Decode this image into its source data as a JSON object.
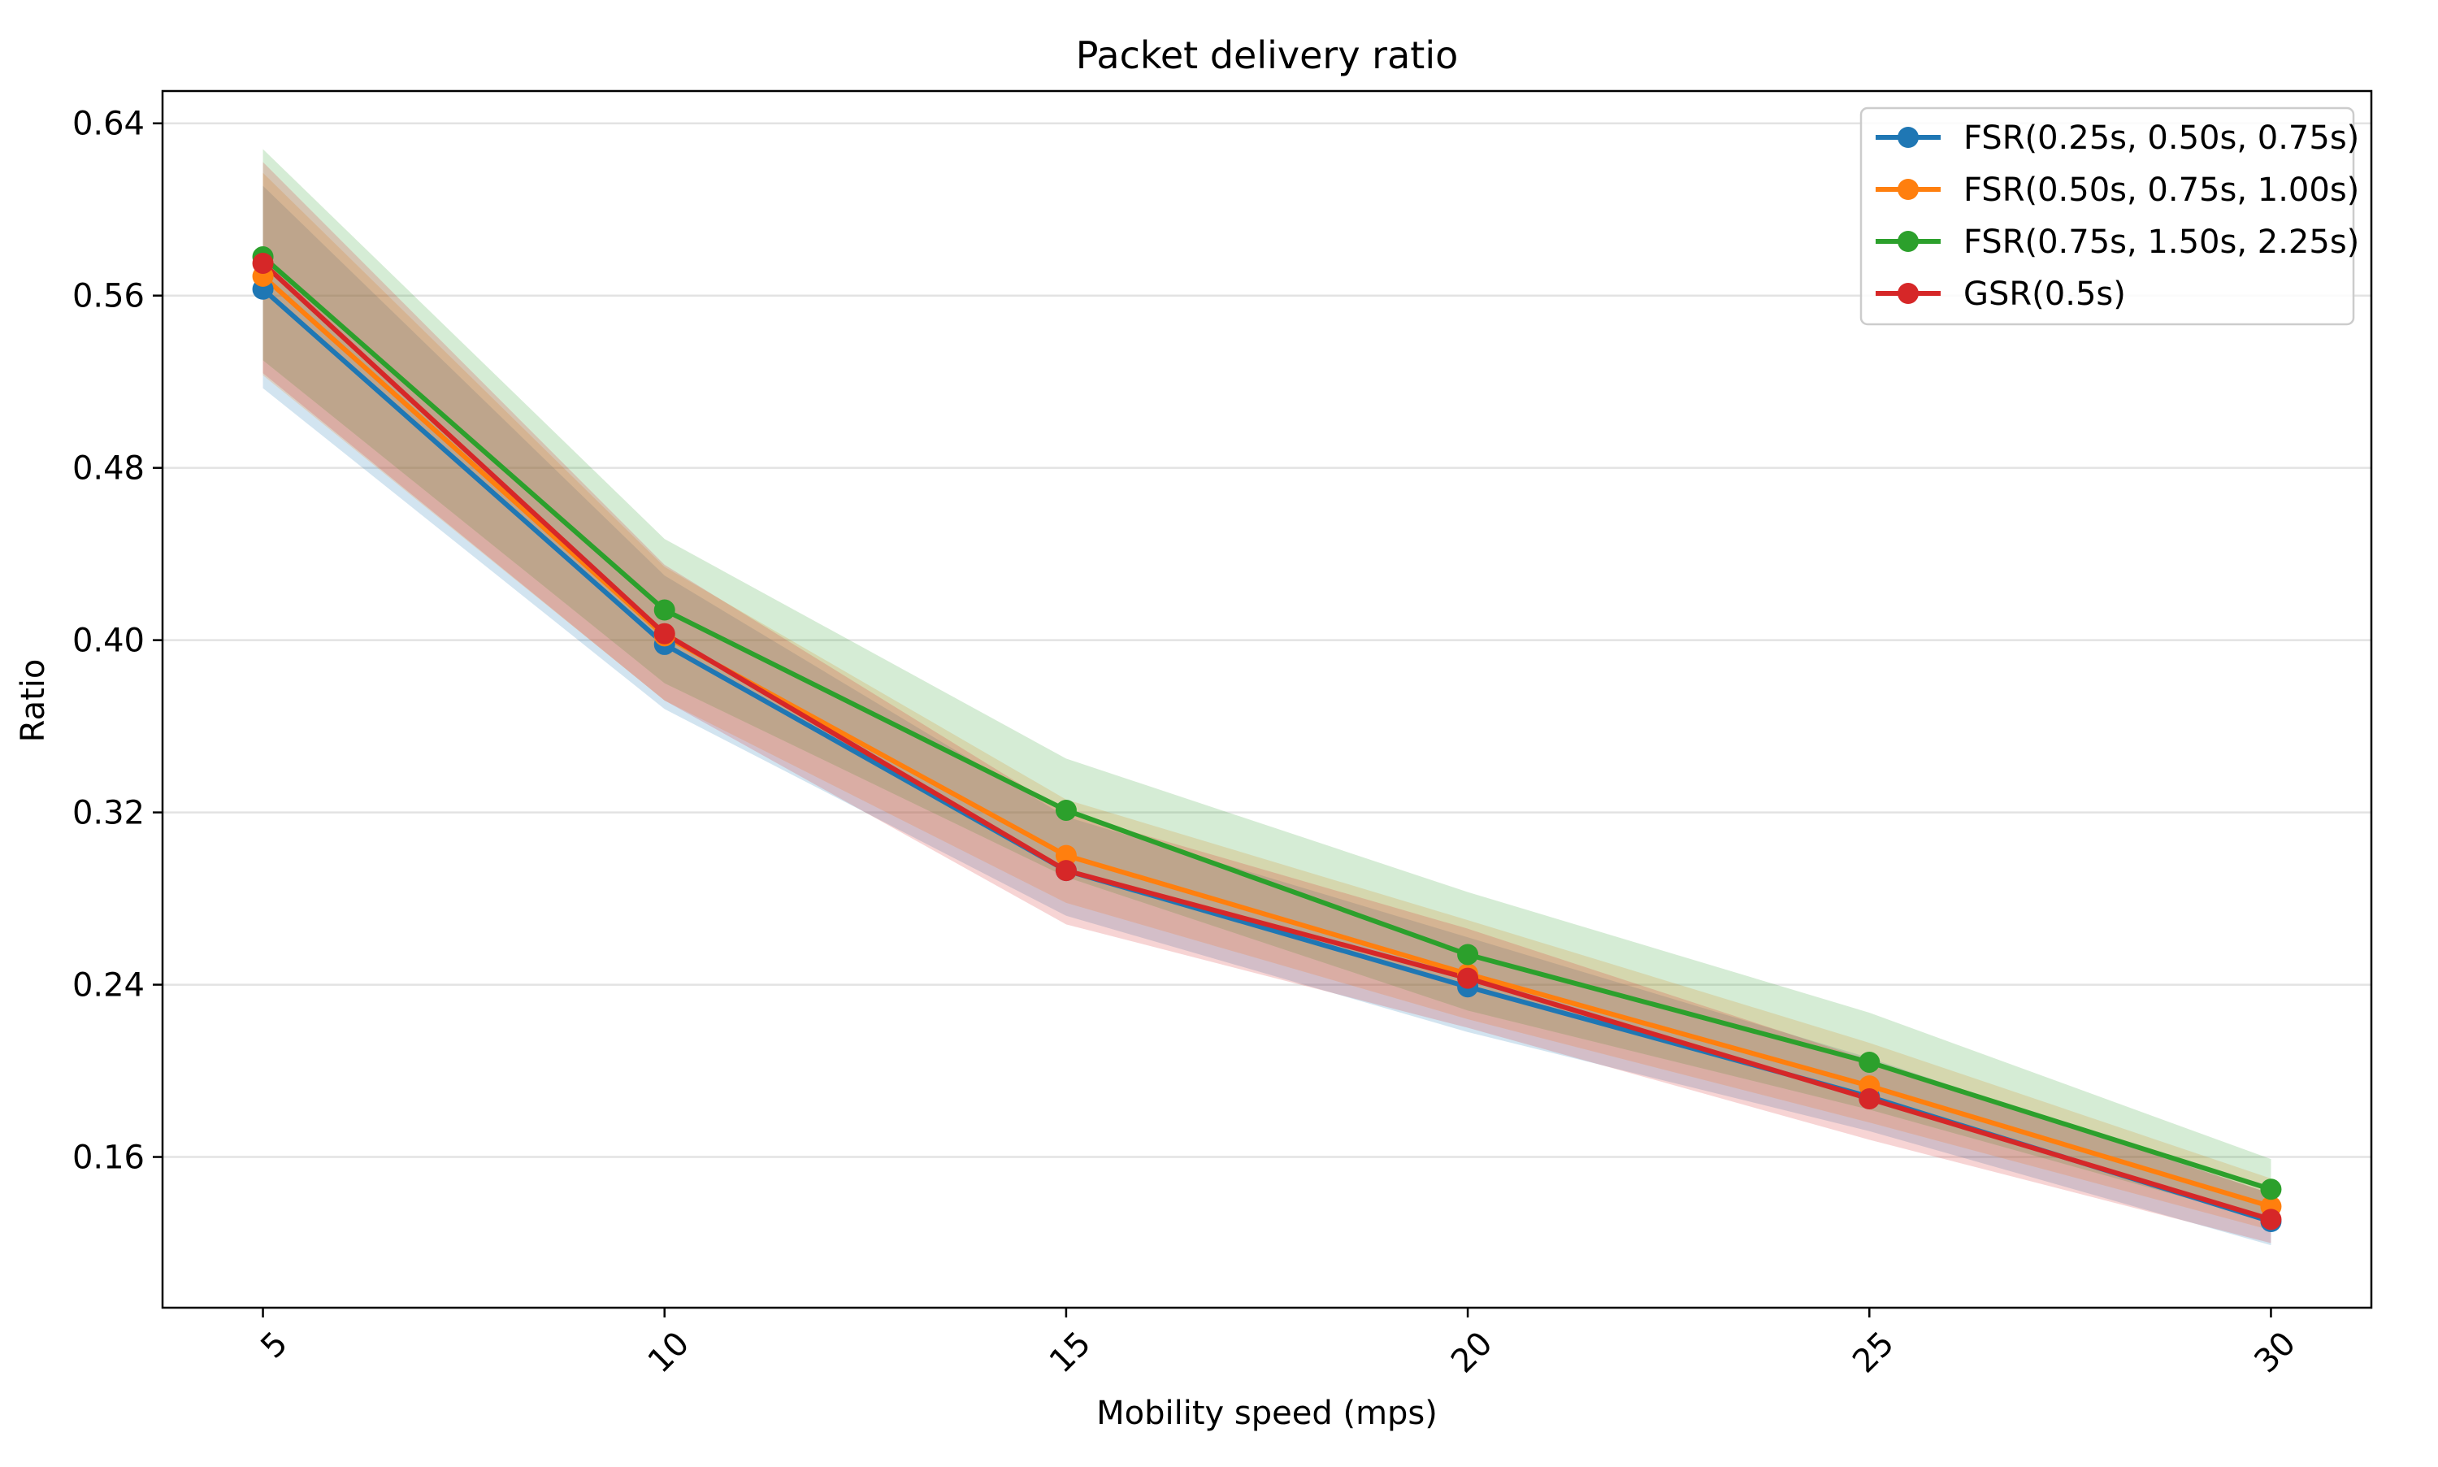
{
  "chart_data": {
    "type": "line",
    "title": "Packet delivery ratio",
    "xlabel": "Mobility speed (mps)",
    "ylabel": "Ratio",
    "x": [
      5,
      10,
      15,
      20,
      25,
      30
    ],
    "x_ticks": [
      "5",
      "10",
      "15",
      "20",
      "25",
      "30"
    ],
    "y_ticks": [
      "0.16",
      "0.24",
      "0.32",
      "0.40",
      "0.48",
      "0.56",
      "0.64"
    ],
    "y_tick_values": [
      0.16,
      0.24,
      0.32,
      0.4,
      0.48,
      0.56,
      0.64
    ],
    "xlim": [
      3.75,
      31.25
    ],
    "ylim": [
      0.09,
      0.655
    ],
    "grid": "horizontal",
    "legend_position": "top-right",
    "series": [
      {
        "name": "FSR(0.25s, 0.50s, 0.75s)",
        "color": "#1f77b4",
        "values": [
          0.563,
          0.398,
          0.293,
          0.239,
          0.188,
          0.13
        ],
        "band_lower": [
          0.517,
          0.368,
          0.272,
          0.218,
          0.172,
          0.119
        ],
        "band_upper": [
          0.611,
          0.43,
          0.318,
          0.262,
          0.206,
          0.143
        ]
      },
      {
        "name": "FSR(0.50s, 0.75s, 1.00s)",
        "color": "#ff7f0e",
        "values": [
          0.569,
          0.402,
          0.3,
          0.245,
          0.193,
          0.137
        ],
        "band_lower": [
          0.523,
          0.372,
          0.278,
          0.224,
          0.176,
          0.126
        ],
        "band_upper": [
          0.617,
          0.434,
          0.326,
          0.27,
          0.213,
          0.15
        ]
      },
      {
        "name": "FSR(0.75s, 1.50s, 2.25s)",
        "color": "#2ca02c",
        "values": [
          0.578,
          0.414,
          0.321,
          0.254,
          0.204,
          0.145
        ],
        "band_lower": [
          0.53,
          0.38,
          0.29,
          0.228,
          0.182,
          0.13
        ],
        "band_upper": [
          0.628,
          0.447,
          0.345,
          0.283,
          0.227,
          0.159
        ]
      },
      {
        "name": "GSR(0.5s)",
        "color": "#d62728",
        "values": [
          0.575,
          0.403,
          0.293,
          0.243,
          0.187,
          0.131
        ],
        "band_lower": [
          0.524,
          0.372,
          0.268,
          0.22,
          0.168,
          0.12
        ],
        "band_upper": [
          0.622,
          0.435,
          0.32,
          0.266,
          0.205,
          0.143
        ]
      }
    ]
  }
}
